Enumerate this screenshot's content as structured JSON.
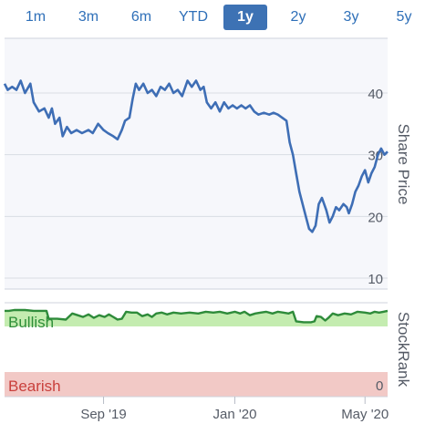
{
  "range_selector": {
    "buttons": [
      "1m",
      "3m",
      "6m",
      "YTD",
      "1y",
      "2y",
      "3y",
      "5y"
    ],
    "active": "1y",
    "active_color": "#3d72b4"
  },
  "chart_data": [
    {
      "type": "line",
      "ylabel": "Share Price",
      "ylim": [
        8,
        50
      ],
      "yticks": [
        10,
        20,
        30,
        40
      ],
      "line_color": "#3e6eb5",
      "grid": true,
      "x_axis": {
        "type": "date",
        "range": [
          "2019-06-01",
          "2020-05-22"
        ],
        "tick_labels": [
          {
            "date": "2019-09-01",
            "label": "Sep '19"
          },
          {
            "date": "2020-01-01",
            "label": "Jan '20"
          },
          {
            "date": "2020-05-01",
            "label": "May '20"
          }
        ]
      },
      "series": [
        {
          "points": [
            [
              "2019-06-01",
              41.5
            ],
            [
              "2019-06-04",
              40.5
            ],
            [
              "2019-06-08",
              41.0
            ],
            [
              "2019-06-12",
              40.5
            ],
            [
              "2019-06-16",
              42.0
            ],
            [
              "2019-06-20",
              40.0
            ],
            [
              "2019-06-25",
              41.5
            ],
            [
              "2019-06-28",
              38.5
            ],
            [
              "2019-07-03",
              37.0
            ],
            [
              "2019-07-08",
              37.5
            ],
            [
              "2019-07-12",
              36.0
            ],
            [
              "2019-07-15",
              37.5
            ],
            [
              "2019-07-18",
              35.0
            ],
            [
              "2019-07-22",
              36.0
            ],
            [
              "2019-07-25",
              33.0
            ],
            [
              "2019-07-29",
              34.5
            ],
            [
              "2019-08-02",
              33.5
            ],
            [
              "2019-08-07",
              34.0
            ],
            [
              "2019-08-12",
              33.5
            ],
            [
              "2019-08-18",
              34.0
            ],
            [
              "2019-08-22",
              33.5
            ],
            [
              "2019-08-27",
              35.0
            ],
            [
              "2019-09-01",
              34.0
            ],
            [
              "2019-09-05",
              33.5
            ],
            [
              "2019-09-10",
              33.0
            ],
            [
              "2019-09-14",
              32.5
            ],
            [
              "2019-09-18",
              34.0
            ],
            [
              "2019-09-21",
              35.5
            ],
            [
              "2019-09-25",
              36.0
            ],
            [
              "2019-09-28",
              39.0
            ],
            [
              "2019-10-01",
              41.5
            ],
            [
              "2019-10-04",
              40.5
            ],
            [
              "2019-10-08",
              41.5
            ],
            [
              "2019-10-12",
              40.0
            ],
            [
              "2019-10-16",
              40.5
            ],
            [
              "2019-10-20",
              39.5
            ],
            [
              "2019-10-24",
              41.0
            ],
            [
              "2019-10-28",
              40.5
            ],
            [
              "2019-11-01",
              41.5
            ],
            [
              "2019-11-05",
              40.0
            ],
            [
              "2019-11-09",
              40.5
            ],
            [
              "2019-11-13",
              39.5
            ],
            [
              "2019-11-18",
              42.0
            ],
            [
              "2019-11-22",
              41.0
            ],
            [
              "2019-11-26",
              42.0
            ],
            [
              "2019-11-30",
              40.5
            ],
            [
              "2019-12-03",
              41.0
            ],
            [
              "2019-12-06",
              38.5
            ],
            [
              "2019-12-10",
              37.5
            ],
            [
              "2019-12-14",
              38.5
            ],
            [
              "2019-12-18",
              37.0
            ],
            [
              "2019-12-22",
              38.5
            ],
            [
              "2019-12-26",
              37.5
            ],
            [
              "2019-12-30",
              38.0
            ],
            [
              "2020-01-03",
              37.5
            ],
            [
              "2020-01-07",
              38.0
            ],
            [
              "2020-01-11",
              37.5
            ],
            [
              "2020-01-15",
              38.0
            ],
            [
              "2020-01-19",
              37.0
            ],
            [
              "2020-01-23",
              36.5
            ],
            [
              "2020-01-28",
              36.8
            ],
            [
              "2020-02-02",
              36.5
            ],
            [
              "2020-02-06",
              36.8
            ],
            [
              "2020-02-10",
              36.5
            ],
            [
              "2020-02-14",
              36.0
            ],
            [
              "2020-02-18",
              35.5
            ],
            [
              "2020-02-21",
              32.0
            ],
            [
              "2020-02-24",
              30.0
            ],
            [
              "2020-02-27",
              27.0
            ],
            [
              "2020-03-01",
              24.0
            ],
            [
              "2020-03-04",
              22.0
            ],
            [
              "2020-03-07",
              20.0
            ],
            [
              "2020-03-10",
              18.0
            ],
            [
              "2020-03-13",
              17.5
            ],
            [
              "2020-03-16",
              18.5
            ],
            [
              "2020-03-19",
              22.0
            ],
            [
              "2020-03-22",
              23.0
            ],
            [
              "2020-03-26",
              21.0
            ],
            [
              "2020-03-29",
              19.0
            ],
            [
              "2020-04-01",
              20.0
            ],
            [
              "2020-04-04",
              21.5
            ],
            [
              "2020-04-07",
              21.0
            ],
            [
              "2020-04-11",
              22.0
            ],
            [
              "2020-04-14",
              21.5
            ],
            [
              "2020-04-16",
              20.5
            ],
            [
              "2020-04-19",
              22.0
            ],
            [
              "2020-04-22",
              24.0
            ],
            [
              "2020-04-25",
              25.0
            ],
            [
              "2020-04-28",
              26.5
            ],
            [
              "2020-05-01",
              27.5
            ],
            [
              "2020-05-04",
              25.5
            ],
            [
              "2020-05-07",
              27.0
            ],
            [
              "2020-05-10",
              28.0
            ],
            [
              "2020-05-13",
              30.0
            ],
            [
              "2020-05-16",
              31.0
            ],
            [
              "2020-05-19",
              30.0
            ],
            [
              "2020-05-22",
              30.5
            ]
          ]
        }
      ]
    },
    {
      "type": "area",
      "ylabel": "StockRank",
      "band_labels": {
        "top": "Bullish",
        "bottom": "Bearish"
      },
      "bottom_value_label": "0",
      "ylim": [
        0,
        100
      ],
      "line_color": "#2e8b3a",
      "fill_color": "#c4ecb0",
      "bearish_band_color": "#f2c9c6",
      "series": [
        {
          "points": [
            [
              "2019-06-01",
              98
            ],
            [
              "2019-06-05",
              98
            ],
            [
              "2019-06-10",
              99
            ],
            [
              "2019-06-20",
              99
            ],
            [
              "2019-06-28",
              98
            ],
            [
              "2019-07-05",
              98
            ],
            [
              "2019-07-10",
              98
            ],
            [
              "2019-07-12",
              89
            ],
            [
              "2019-07-20",
              89
            ],
            [
              "2019-07-28",
              88
            ],
            [
              "2019-08-03",
              95
            ],
            [
              "2019-08-08",
              93
            ],
            [
              "2019-08-13",
              91
            ],
            [
              "2019-08-18",
              94
            ],
            [
              "2019-08-23",
              90
            ],
            [
              "2019-08-28",
              93
            ],
            [
              "2019-09-02",
              91
            ],
            [
              "2019-09-06",
              94
            ],
            [
              "2019-09-10",
              91
            ],
            [
              "2019-09-14",
              88
            ],
            [
              "2019-09-18",
              89
            ],
            [
              "2019-09-22",
              97
            ],
            [
              "2019-09-27",
              96
            ],
            [
              "2019-10-02",
              96
            ],
            [
              "2019-10-07",
              92
            ],
            [
              "2019-10-12",
              94
            ],
            [
              "2019-10-16",
              91
            ],
            [
              "2019-10-20",
              95
            ],
            [
              "2019-10-25",
              96
            ],
            [
              "2019-10-30",
              94
            ],
            [
              "2019-11-05",
              96
            ],
            [
              "2019-11-12",
              95
            ],
            [
              "2019-11-20",
              96
            ],
            [
              "2019-11-28",
              95
            ],
            [
              "2019-12-05",
              97
            ],
            [
              "2019-12-12",
              96
            ],
            [
              "2019-12-18",
              97
            ],
            [
              "2019-12-25",
              95
            ],
            [
              "2020-01-01",
              97
            ],
            [
              "2020-01-06",
              95
            ],
            [
              "2020-01-10",
              97
            ],
            [
              "2020-01-15",
              93
            ],
            [
              "2020-01-20",
              95
            ],
            [
              "2020-01-25",
              96
            ],
            [
              "2020-01-30",
              97
            ],
            [
              "2020-02-05",
              95
            ],
            [
              "2020-02-10",
              97
            ],
            [
              "2020-02-15",
              96
            ],
            [
              "2020-02-20",
              95
            ],
            [
              "2020-02-24",
              97
            ],
            [
              "2020-02-27",
              86
            ],
            [
              "2020-03-05",
              85
            ],
            [
              "2020-03-12",
              85
            ],
            [
              "2020-03-15",
              86
            ],
            [
              "2020-03-17",
              92
            ],
            [
              "2020-03-21",
              91
            ],
            [
              "2020-03-25",
              87
            ],
            [
              "2020-03-28",
              90
            ],
            [
              "2020-04-01",
              95
            ],
            [
              "2020-04-06",
              93
            ],
            [
              "2020-04-12",
              95
            ],
            [
              "2020-04-18",
              94
            ],
            [
              "2020-04-24",
              97
            ],
            [
              "2020-05-01",
              96
            ],
            [
              "2020-05-06",
              95
            ],
            [
              "2020-05-10",
              97
            ],
            [
              "2020-05-14",
              96
            ],
            [
              "2020-05-18",
              97
            ],
            [
              "2020-05-22",
              98
            ]
          ]
        }
      ]
    }
  ]
}
